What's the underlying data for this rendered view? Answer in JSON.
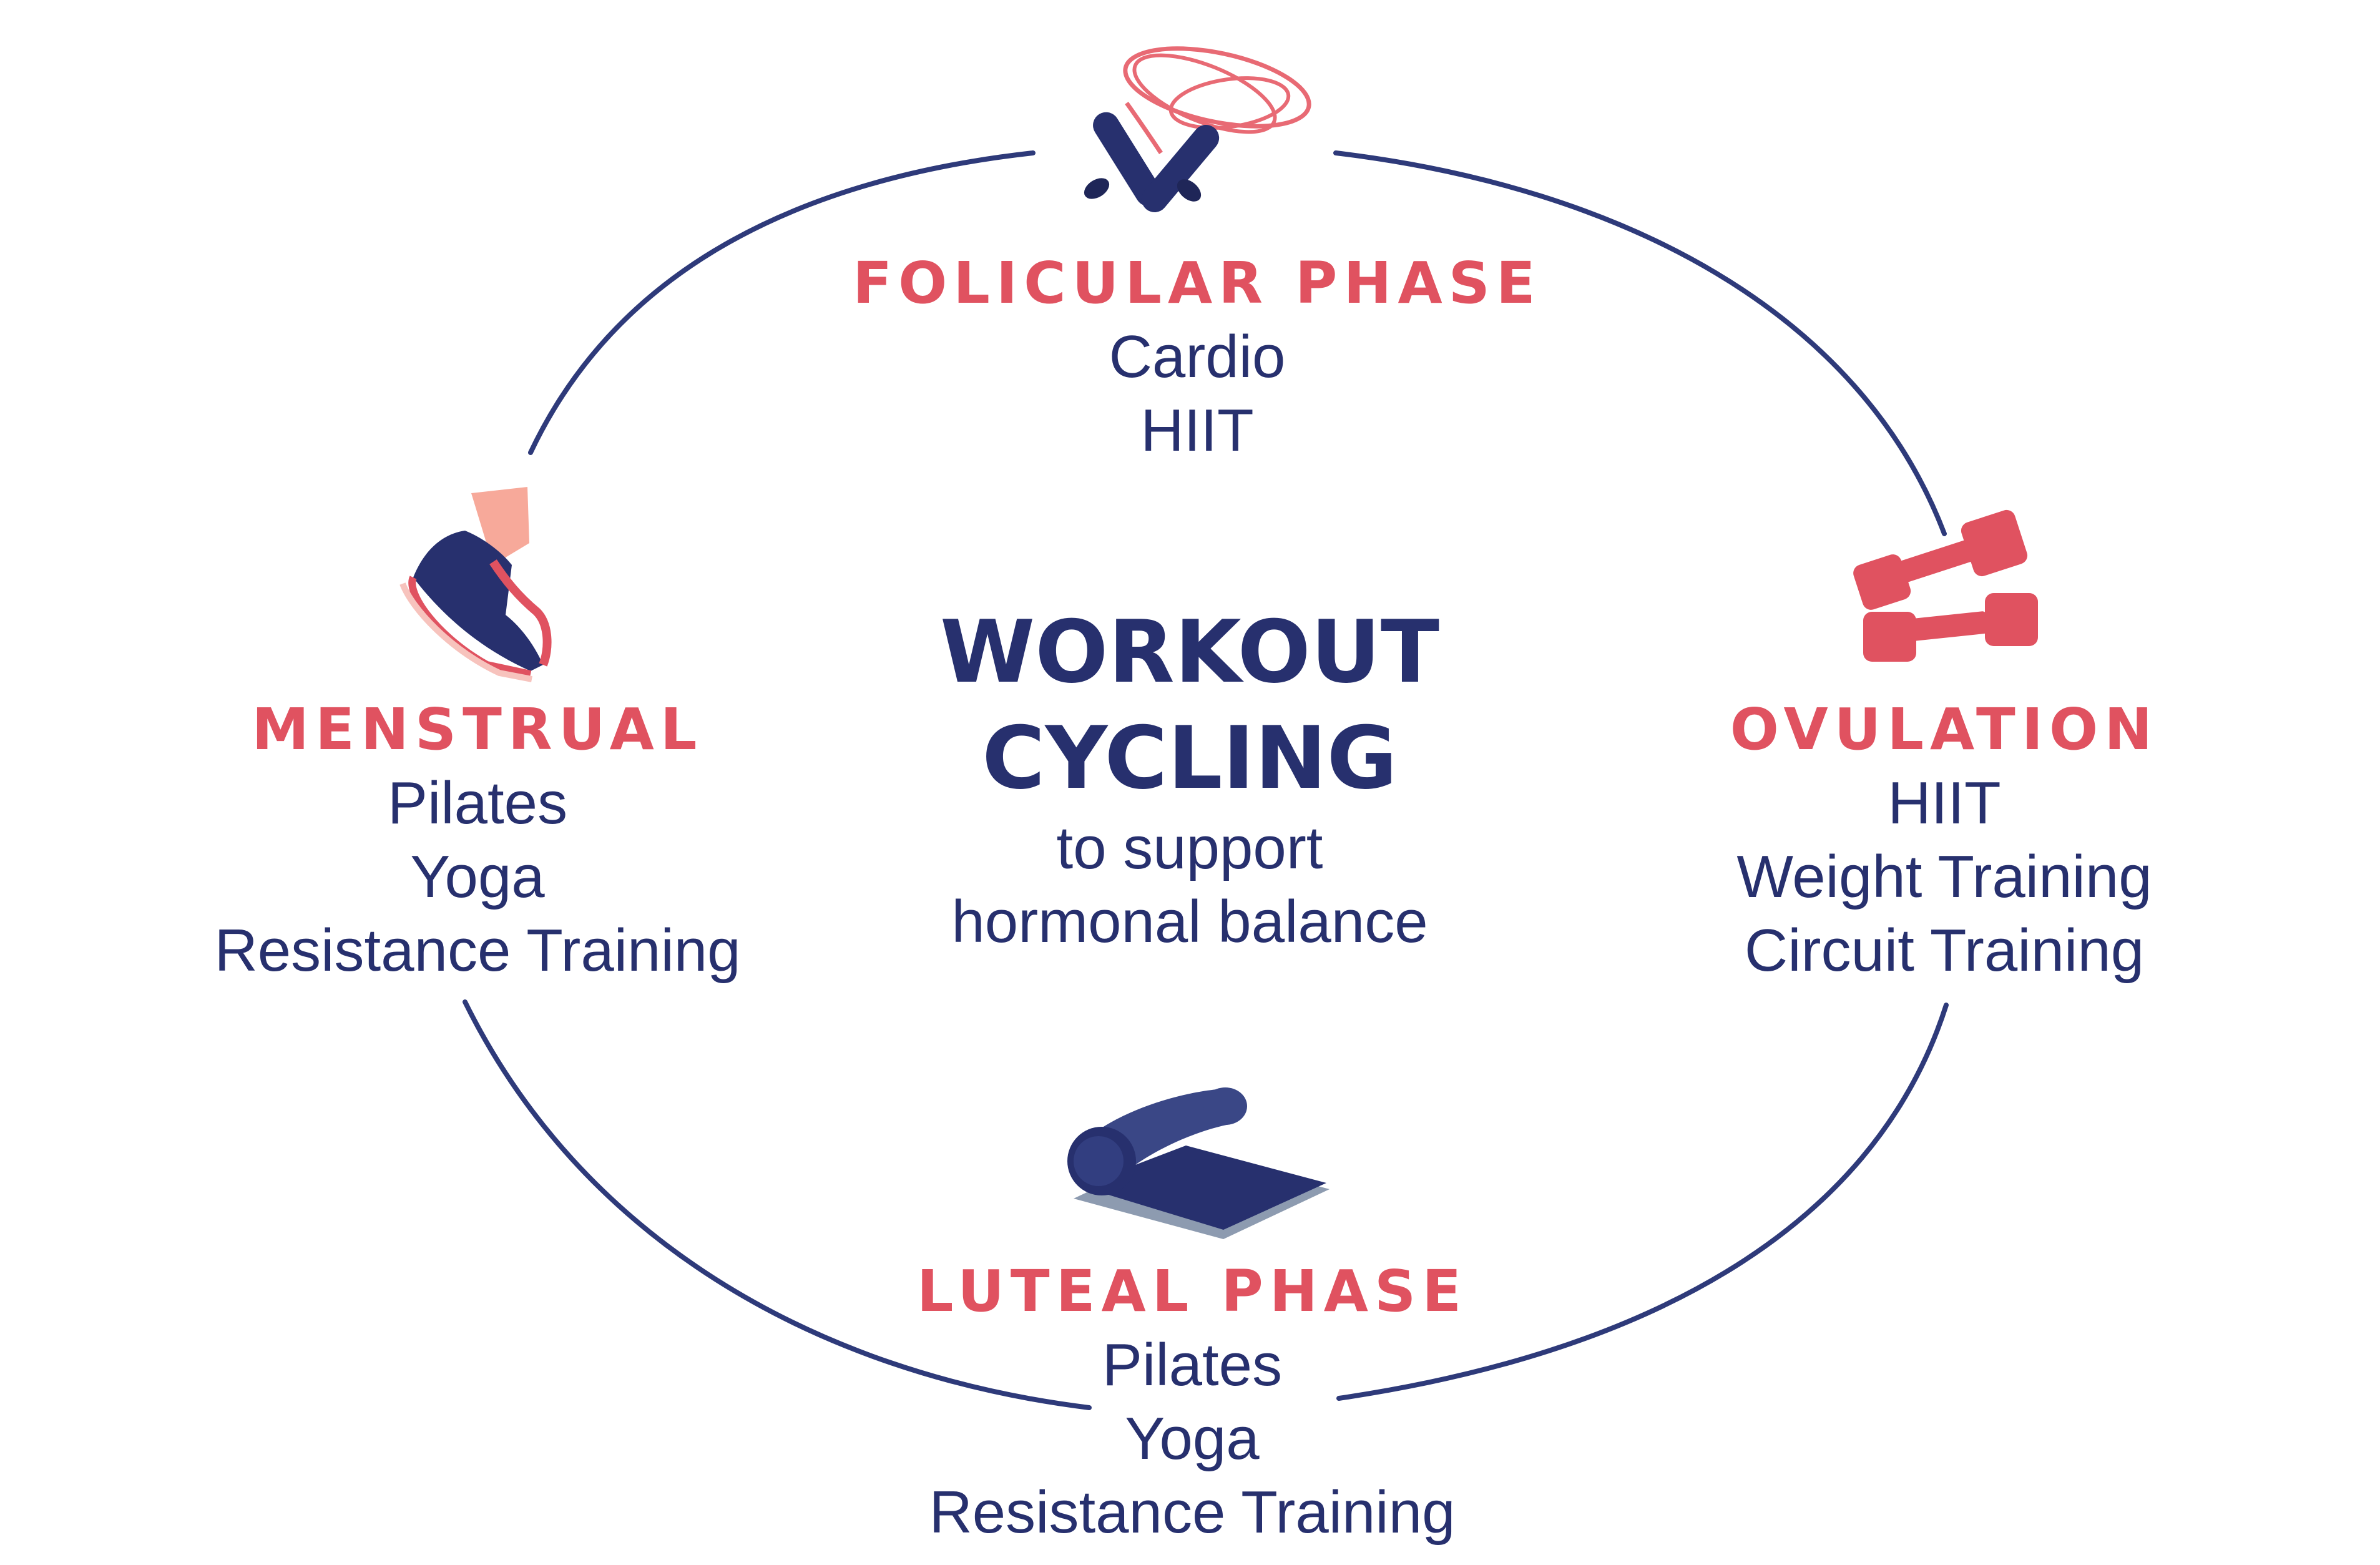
{
  "center": {
    "title_line1": "WORKOUT",
    "title_line2": "CYCLING",
    "subtitle_line1": "to support",
    "subtitle_line2": "hormonal balance"
  },
  "phases": {
    "follicular": {
      "title": "FOLICULAR PHASE",
      "items": [
        "Cardio",
        "HIIT"
      ],
      "icon": "jump-rope-icon"
    },
    "ovulation": {
      "title": "OVULATION",
      "items": [
        "HIIT",
        "Weight Training",
        "Circuit Training"
      ],
      "icon": "dumbbells-icon"
    },
    "luteal": {
      "title": "LUTEAL PHASE",
      "items": [
        "Pilates",
        "Yoga",
        "Resistance Training"
      ],
      "icon": "yoga-mat-icon"
    },
    "menstrual": {
      "title": "MENSTRUAL",
      "items": [
        "Pilates",
        "Yoga",
        "Resistance Training"
      ],
      "icon": "sneaker-icon"
    }
  },
  "colors": {
    "navy": "#27306e",
    "coral": "#e05260",
    "cycle_line": "#2e3a7a",
    "background": "#ffffff"
  }
}
